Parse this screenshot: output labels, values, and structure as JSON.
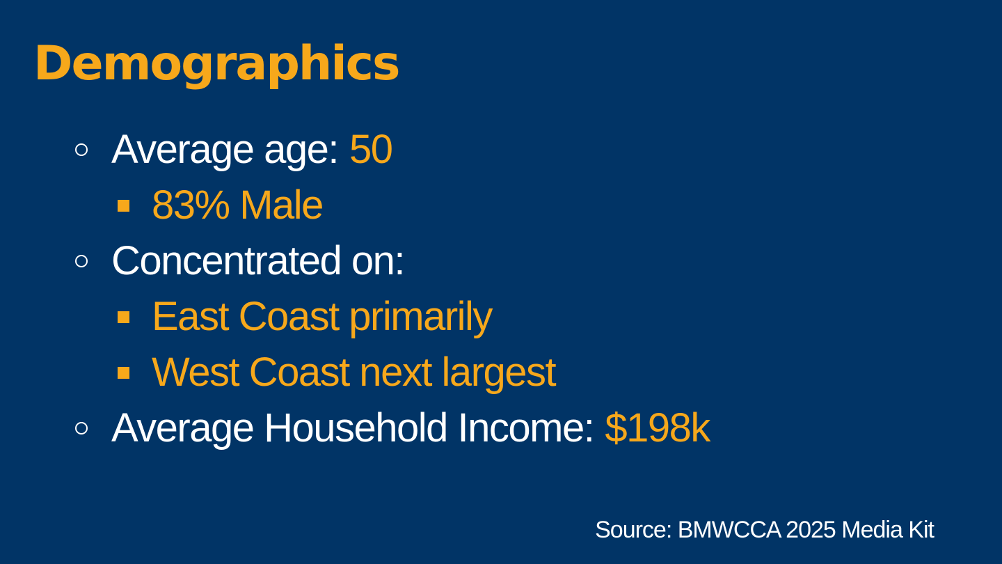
{
  "title": "Demographics",
  "bullets": [
    {
      "text": "Average age:",
      "highlight": "50",
      "sub": [
        "83% Male"
      ]
    },
    {
      "text": "Concentrated on:",
      "sub": [
        "East Coast primarily",
        "West Coast next largest"
      ]
    },
    {
      "text": "Average Household Income:",
      "highlight": "$198k"
    }
  ],
  "source": "Source: BMWCCA 2025 Media Kit"
}
